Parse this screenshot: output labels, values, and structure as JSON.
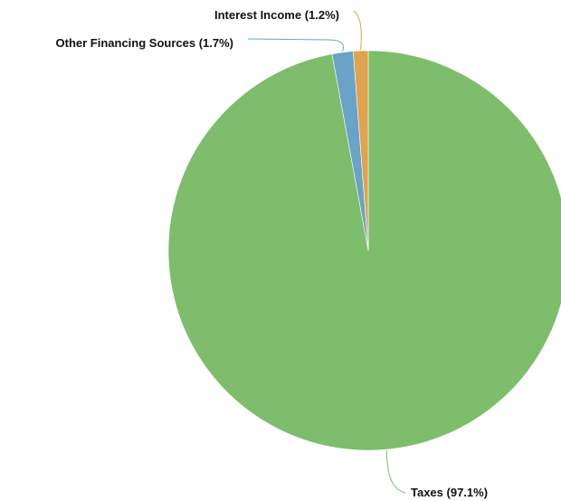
{
  "chart_data": {
    "type": "pie",
    "title": "",
    "slices": [
      {
        "name": "Taxes",
        "percent": 97.1,
        "label": "Taxes (97.1%)",
        "color": "#7dbd6b"
      },
      {
        "name": "Other Financing Sources",
        "percent": 1.7,
        "label": "Other Financing Sources (1.7%)",
        "color": "#6aa3c8"
      },
      {
        "name": "Interest Income",
        "percent": 1.2,
        "label": "Interest Income (1.2%)",
        "color": "#e0a34e"
      }
    ],
    "start": "top",
    "direction": "clockwise",
    "legend": "none"
  }
}
